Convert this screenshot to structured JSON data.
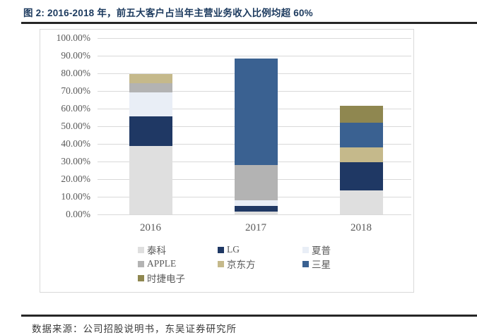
{
  "page": {
    "title": "图 2: 2016-2018 年，前五大客户占当年主营业务收入比例均超 60%",
    "footer": "数据来源：公司招股说明书，东吴证券研究所"
  },
  "colors": {
    "title_text": "#1c3a5e",
    "rule": "#262626",
    "axis_text": "#595959",
    "gridline": "#d9d9d9",
    "chart_border": "#d9d9d9",
    "background": "#ffffff"
  },
  "chart_data": {
    "type": "bar",
    "stacked": true,
    "title": "图 2: 2016-2018 年，前五大客户占当年主营业务收入比例均超 60%",
    "categories": [
      "2016",
      "2017",
      "2018"
    ],
    "series": [
      {
        "name": "泰科",
        "color": "#dfdfdf",
        "values": [
          39.0,
          1.5,
          13.5
        ]
      },
      {
        "name": "LG",
        "color": "#1f3864",
        "values": [
          16.7,
          3.3,
          16.0
        ]
      },
      {
        "name": "夏普",
        "color": "#e9eef6",
        "values": [
          13.5,
          3.2,
          0
        ]
      },
      {
        "name": "APPLE",
        "color": "#b3b3b3",
        "values": [
          5.2,
          20.2,
          0
        ]
      },
      {
        "name": "京东方",
        "color": "#c5b98b",
        "values": [
          5.3,
          0,
          8.6
        ]
      },
      {
        "name": "三星",
        "color": "#3a6191",
        "values": [
          0,
          60.3,
          14.0
        ]
      },
      {
        "name": "时捷电子",
        "color": "#8f8750",
        "values": [
          0,
          0,
          9.6
        ]
      }
    ],
    "stack_totals": [
      79.7,
      88.5,
      61.7
    ],
    "xlabel": "",
    "ylabel": "",
    "ylim": [
      0,
      100
    ],
    "ytick_step": 10,
    "ytick_labels": [
      "0.00%",
      "10.00%",
      "20.00%",
      "30.00%",
      "40.00%",
      "50.00%",
      "60.00%",
      "70.00%",
      "80.00%",
      "90.00%",
      "100.00%"
    ],
    "grid": true,
    "legend_position": "bottom",
    "legend_rows": [
      [
        "泰科",
        "LG",
        "夏普"
      ],
      [
        "APPLE",
        "京东方",
        "三星"
      ],
      [
        "时捷电子"
      ]
    ]
  }
}
